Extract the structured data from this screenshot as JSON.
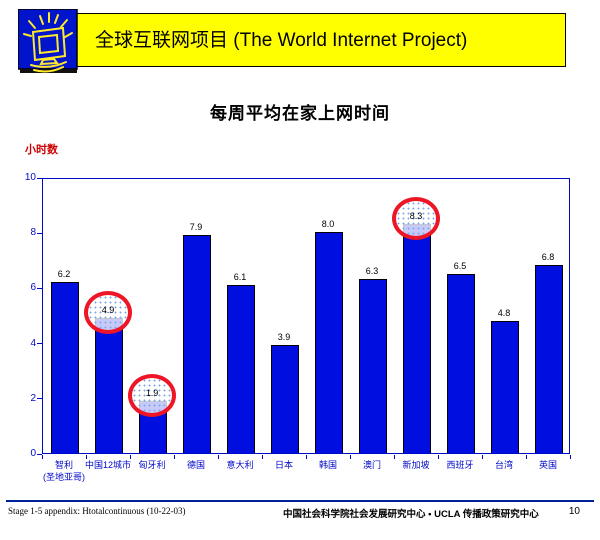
{
  "header": {
    "title": "全球互联网项目 (The World Internet Project)",
    "icon": "shining-monitor-icon",
    "banner_color": "#ffff00",
    "icon_bg_color": "#0014cc"
  },
  "slide_title": "每周平均在家上网时间",
  "chart_data": {
    "type": "bar",
    "title": "每周平均在家上网时间",
    "ylabel": "小时数",
    "xlabel": "",
    "ylim": [
      0,
      10
    ],
    "yticks": [
      0,
      2,
      4,
      6,
      8,
      10
    ],
    "grid": false,
    "legend": "none",
    "bar_color": "#000fe0",
    "axis_color": "#0008c8",
    "highlight_circle_color": "#ee1525",
    "categories": [
      {
        "label": "智利",
        "sub": "(圣地亚哥)"
      },
      {
        "label": "中国12城市",
        "sub": ""
      },
      {
        "label": "匈牙利",
        "sub": ""
      },
      {
        "label": "德国",
        "sub": ""
      },
      {
        "label": "意大利",
        "sub": ""
      },
      {
        "label": "日本",
        "sub": ""
      },
      {
        "label": "韩国",
        "sub": ""
      },
      {
        "label": "澳门",
        "sub": ""
      },
      {
        "label": "新加坡",
        "sub": ""
      },
      {
        "label": "西班牙",
        "sub": ""
      },
      {
        "label": "台湾",
        "sub": ""
      },
      {
        "label": "英国",
        "sub": ""
      }
    ],
    "values": [
      6.2,
      4.9,
      1.9,
      7.9,
      6.1,
      3.9,
      8.0,
      6.3,
      8.3,
      6.5,
      4.8,
      6.8
    ],
    "value_labels": [
      "6.2",
      "4.9",
      "1.9",
      "7.9",
      "6.1",
      "3.9",
      "8.0",
      "6.3",
      "8.3",
      "6.5",
      "4.8",
      "6.8"
    ],
    "circled": [
      false,
      true,
      true,
      false,
      false,
      false,
      false,
      false,
      true,
      false,
      false,
      false
    ]
  },
  "footer": {
    "left": "Stage 1-5 appendix: Htotalcontinuous (10-22-03)",
    "center": "中国社会科学院社会发展研究中心 • UCLA 传播政策研究中心",
    "page": "10"
  }
}
